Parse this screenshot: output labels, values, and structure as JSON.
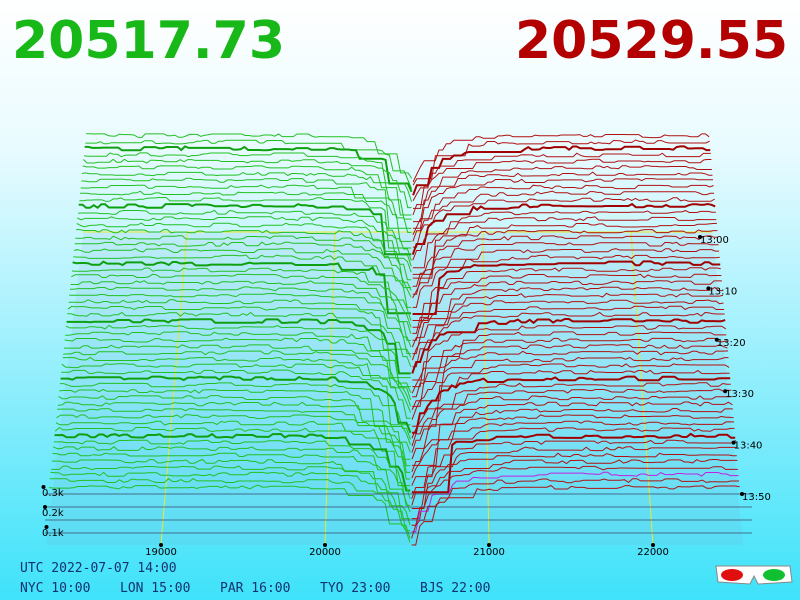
{
  "header": {
    "bid": "20517.73",
    "ask": "20529.55"
  },
  "price_axis": {
    "ticks": [
      19000,
      20000,
      21000,
      22000
    ]
  },
  "volume_axis": {
    "ticks": [
      {
        "value": 100,
        "label": "0.1k"
      },
      {
        "value": 200,
        "label": "0.2k"
      },
      {
        "value": 300,
        "label": "0.3k"
      }
    ]
  },
  "time_axis": {
    "labels": [
      "13:00",
      "13:10",
      "13:20",
      "13:30",
      "13:40",
      "13:50"
    ]
  },
  "footer": {
    "utc": "UTC 2022-07-07 14:00",
    "cities": [
      "NYC 10:00",
      "LON 15:00",
      "PAR 16:00",
      "TYO 23:00",
      "BJS 22:00"
    ]
  }
}
